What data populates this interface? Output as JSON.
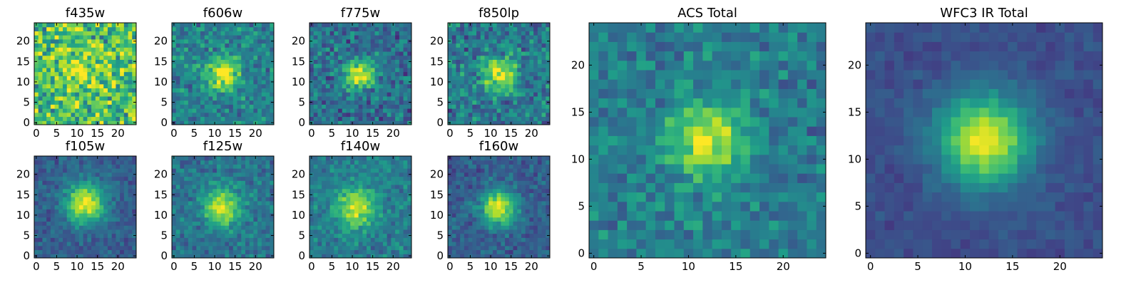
{
  "chart_data": [
    {
      "type": "heatmap",
      "title": "f435w",
      "xticks": [
        0,
        5,
        10,
        15,
        20
      ],
      "yticks": [
        0,
        5,
        10,
        15,
        20
      ],
      "xlim": [
        -0.5,
        24.5
      ],
      "ylim": [
        -0.5,
        24.5
      ],
      "center": [
        12,
        12
      ],
      "peak": 0.25,
      "sigma": 4,
      "noise": 0.4,
      "base": 0.7,
      "seed": 11
    },
    {
      "type": "heatmap",
      "title": "f606w",
      "xticks": [
        0,
        5,
        10,
        15,
        20
      ],
      "yticks": [
        0,
        5,
        10,
        15,
        20
      ],
      "xlim": [
        -0.5,
        24.5
      ],
      "ylim": [
        -0.5,
        24.5
      ],
      "center": [
        12,
        12
      ],
      "peak": 0.55,
      "sigma": 2.8,
      "noise": 0.24,
      "base": 0.44,
      "seed": 23
    },
    {
      "type": "heatmap",
      "title": "f775w",
      "xticks": [
        0,
        5,
        10,
        15,
        20
      ],
      "yticks": [
        0,
        5,
        10,
        15,
        20
      ],
      "xlim": [
        -0.5,
        24.5
      ],
      "ylim": [
        -0.5,
        24.5
      ],
      "center": [
        12,
        12
      ],
      "peak": 0.62,
      "sigma": 2.6,
      "noise": 0.26,
      "base": 0.36,
      "seed": 37
    },
    {
      "type": "heatmap",
      "title": "f850lp",
      "xticks": [
        0,
        5,
        10,
        15,
        20
      ],
      "yticks": [
        0,
        5,
        10,
        15,
        20
      ],
      "xlim": [
        -0.5,
        24.5
      ],
      "ylim": [
        -0.5,
        24.5
      ],
      "center": [
        12,
        12
      ],
      "peak": 0.55,
      "sigma": 3.0,
      "noise": 0.28,
      "base": 0.4,
      "seed": 41
    },
    {
      "type": "heatmap",
      "title": "f105w",
      "xticks": [
        0,
        5,
        10,
        15,
        20
      ],
      "yticks": [
        0,
        5,
        10,
        15,
        20
      ],
      "xlim": [
        -0.5,
        24.5
      ],
      "ylim": [
        -0.5,
        24.5
      ],
      "center": [
        12,
        13
      ],
      "peak": 0.68,
      "sigma": 3.4,
      "noise": 0.14,
      "base": 0.3,
      "seed": 53
    },
    {
      "type": "heatmap",
      "title": "f125w",
      "xticks": [
        0,
        5,
        10,
        15,
        20
      ],
      "yticks": [
        0,
        5,
        10,
        15,
        20
      ],
      "xlim": [
        -0.5,
        24.5
      ],
      "ylim": [
        -0.5,
        24.5
      ],
      "center": [
        12,
        12
      ],
      "peak": 0.58,
      "sigma": 3.2,
      "noise": 0.18,
      "base": 0.38,
      "seed": 67
    },
    {
      "type": "heatmap",
      "title": "f140w",
      "xticks": [
        0,
        5,
        10,
        15,
        20
      ],
      "yticks": [
        0,
        5,
        10,
        15,
        20
      ],
      "xlim": [
        -0.5,
        24.5
      ],
      "ylim": [
        -0.5,
        24.5
      ],
      "center": [
        11,
        12
      ],
      "peak": 0.52,
      "sigma": 3.3,
      "noise": 0.18,
      "base": 0.42,
      "seed": 79
    },
    {
      "type": "heatmap",
      "title": "f160w",
      "xticks": [
        0,
        5,
        10,
        15,
        20
      ],
      "yticks": [
        0,
        5,
        10,
        15,
        20
      ],
      "xlim": [
        -0.5,
        24.5
      ],
      "ylim": [
        -0.5,
        24.5
      ],
      "center": [
        12,
        12
      ],
      "peak": 0.66,
      "sigma": 3.0,
      "noise": 0.16,
      "base": 0.3,
      "seed": 83
    },
    {
      "type": "heatmap",
      "title": "ACS Total",
      "xticks": [
        0,
        5,
        10,
        15,
        20
      ],
      "yticks": [
        0,
        5,
        10,
        15,
        20
      ],
      "xlim": [
        -0.5,
        24.5
      ],
      "ylim": [
        -0.5,
        24.5
      ],
      "center": [
        12,
        12
      ],
      "peak": 0.55,
      "sigma": 2.8,
      "noise": 0.2,
      "base": 0.42,
      "seed": 97
    },
    {
      "type": "heatmap",
      "title": "WFC3 IR Total",
      "xticks": [
        0,
        5,
        10,
        15,
        20
      ],
      "yticks": [
        0,
        5,
        10,
        15,
        20
      ],
      "xlim": [
        -0.5,
        24.5
      ],
      "ylim": [
        -0.5,
        24.5
      ],
      "center": [
        12,
        12
      ],
      "peak": 0.72,
      "sigma": 3.4,
      "noise": 0.08,
      "base": 0.24,
      "seed": 101
    }
  ],
  "colormap": [
    "#440154",
    "#482777",
    "#3e4a89",
    "#31688e",
    "#26828e",
    "#1f9e89",
    "#35b779",
    "#6ece58",
    "#b5de2b",
    "#fde725"
  ]
}
